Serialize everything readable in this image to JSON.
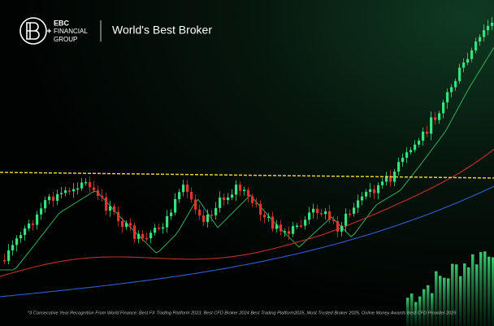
{
  "logo": {
    "lines": [
      "EBC",
      "FINANCIAL",
      "GROUP"
    ]
  },
  "tagline": "World's Best Broker",
  "footnote": "*3 Consecutive Year Recognition From World Finance: Best FX Trading Platform 2023, Best CFD Broker 2024 Best Trading Platform2025, Most Trusted Broker 2025, Online Money Awards Best CFD Provider 2025"
}
